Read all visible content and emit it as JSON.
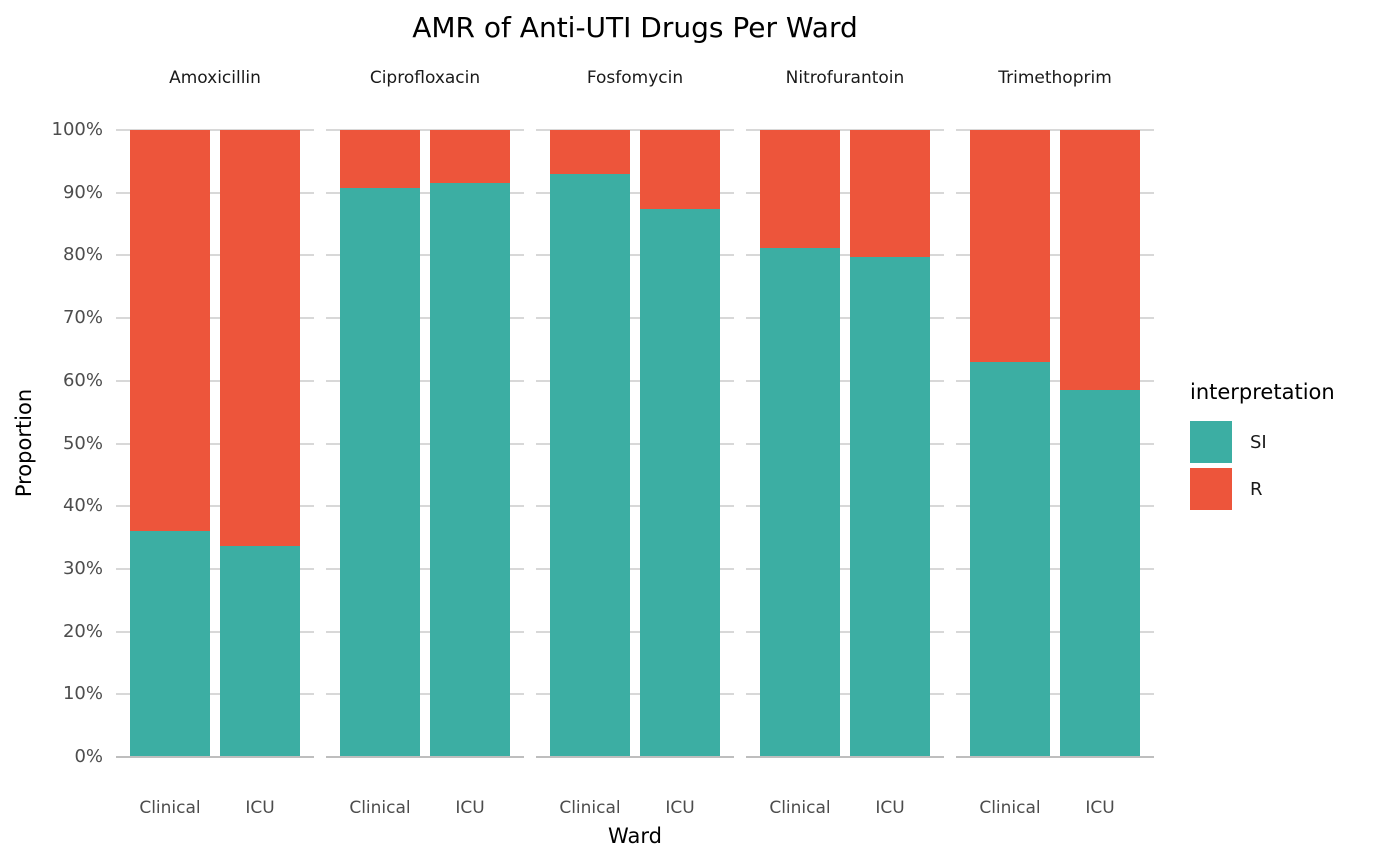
{
  "title": "AMR of Anti-UTI Drugs Per Ward",
  "y_axis": {
    "title": "Proportion",
    "ticks": [
      {
        "label": "0%",
        "value": 0
      },
      {
        "label": "10%",
        "value": 10
      },
      {
        "label": "20%",
        "value": 20
      },
      {
        "label": "30%",
        "value": 30
      },
      {
        "label": "40%",
        "value": 40
      },
      {
        "label": "50%",
        "value": 50
      },
      {
        "label": "60%",
        "value": 60
      },
      {
        "label": "70%",
        "value": 70
      },
      {
        "label": "80%",
        "value": 80
      },
      {
        "label": "90%",
        "value": 90
      },
      {
        "label": "100%",
        "value": 100
      }
    ]
  },
  "x_axis": {
    "title": "Ward",
    "categories": [
      "Clinical",
      "ICU"
    ]
  },
  "legend": {
    "title": "interpretation",
    "items": [
      {
        "label": "SI",
        "color": "#3CAEA3"
      },
      {
        "label": "R",
        "color": "#ED553B"
      }
    ]
  },
  "chart_data": {
    "type": "bar",
    "subtype": "100%-stacked-column, faceted",
    "title": "AMR of Anti-UTI Drugs Per Ward",
    "xlabel": "Ward",
    "ylabel": "Proportion",
    "ylim": [
      0,
      100
    ],
    "y_tick_format": "percent",
    "grid": true,
    "legend_position": "right",
    "legend_title": "interpretation",
    "facets": [
      "Amoxicillin",
      "Ciprofloxacin",
      "Fosfomycin",
      "Nitrofurantoin",
      "Trimethoprim"
    ],
    "categories": [
      "Clinical",
      "ICU"
    ],
    "series": [
      {
        "name": "SI",
        "color": "#3CAEA3",
        "values": {
          "Amoxicillin": [
            36.1,
            33.7
          ],
          "Ciprofloxacin": [
            90.7,
            91.5
          ],
          "Fosfomycin": [
            93.0,
            87.4
          ],
          "Nitrofurantoin": [
            81.2,
            79.7
          ],
          "Trimethoprim": [
            63.0,
            58.5
          ]
        }
      },
      {
        "name": "R",
        "color": "#ED553B",
        "values": {
          "Amoxicillin": [
            63.9,
            66.3
          ],
          "Ciprofloxacin": [
            9.3,
            8.5
          ],
          "Fosfomycin": [
            7.0,
            12.6
          ],
          "Nitrofurantoin": [
            18.8,
            20.3
          ],
          "Trimethoprim": [
            37.0,
            41.5
          ]
        }
      }
    ]
  },
  "colors": {
    "si": "#3CAEA3",
    "r": "#ED553B",
    "gridline": "#D8D8D8",
    "axis_line": "#BEBEBE",
    "tick_text": "#4D4D4D",
    "title_text": "#000000"
  }
}
